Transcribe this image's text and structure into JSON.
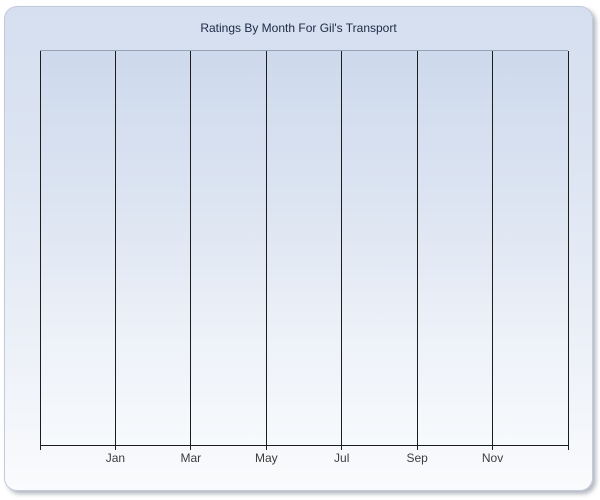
{
  "window": {
    "background_color": "#ffffff"
  },
  "chart_panel": {
    "border_color": "#c2cadb",
    "shadow_color": "#7a7e8c",
    "gradient_top": "#d5dfef",
    "gradient_bottom": "#fafbfd"
  },
  "chart_data": {
    "type": "line",
    "title": "Ratings By Month For Gil's Transport",
    "title_color": "#1d2946",
    "series": [],
    "x_axis": {
      "tick_labels": [
        "Jan",
        "Mar",
        "May",
        "Jul",
        "Sep",
        "Nov"
      ],
      "gridline_count": 8,
      "label_start_gridline": 1,
      "tick_label_color": "#3d3d3d"
    },
    "y_axis": {
      "tick_labels": [],
      "gridlines_visible": false
    },
    "plot": {
      "gridline_color": "#1d1d1d",
      "axis_color": "#1d1d1d",
      "top_border_color": "#98a1b0",
      "gradient_top": "#cdd9ec",
      "gradient_bottom": "#f7fafc"
    },
    "legend": null,
    "notes": "plot area is empty; only vertical gridlines shown, no data points rendered"
  }
}
